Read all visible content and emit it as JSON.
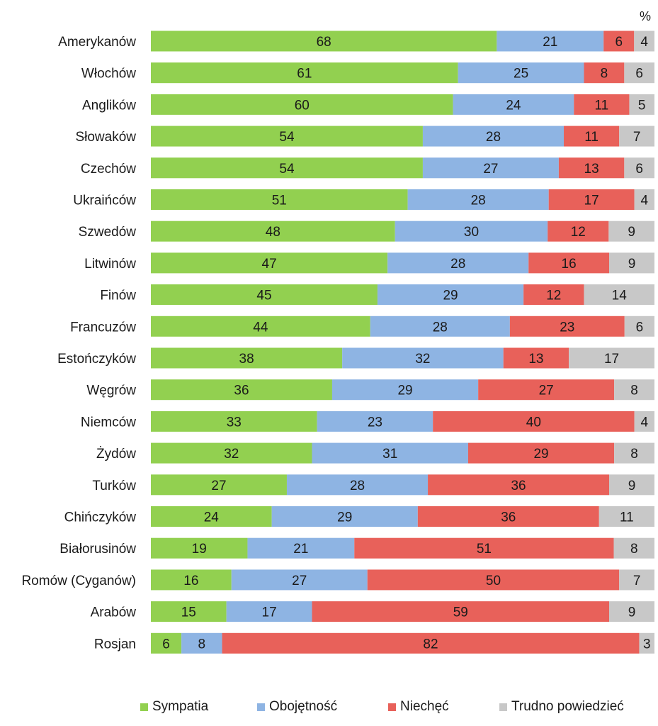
{
  "chart_data": {
    "type": "bar",
    "orientation": "horizontal",
    "stacked": true,
    "unit_label": "%",
    "categories": [
      "Amerykanów",
      "Włochów",
      "Anglików",
      "Słowaków",
      "Czechów",
      "Ukraińców",
      "Szwedów",
      "Litwinów",
      "Finów",
      "Francuzów",
      "Estończyków",
      "Węgrów",
      "Niemców",
      "Żydów",
      "Turków",
      "Chińczyków",
      "Białorusinów",
      "Romów (Cyganów)",
      "Arabów",
      "Rosjan"
    ],
    "series": [
      {
        "name": "Sympatia",
        "color": "#92d050",
        "values": [
          68,
          61,
          60,
          54,
          54,
          51,
          48,
          47,
          45,
          44,
          38,
          36,
          33,
          32,
          27,
          24,
          19,
          16,
          15,
          6
        ]
      },
      {
        "name": "Obojętność",
        "color": "#8eb4e3",
        "values": [
          21,
          25,
          24,
          28,
          27,
          28,
          30,
          28,
          29,
          28,
          32,
          29,
          23,
          31,
          28,
          29,
          21,
          27,
          17,
          8
        ]
      },
      {
        "name": "Niechęć",
        "color": "#e8615a",
        "values": [
          6,
          8,
          11,
          11,
          13,
          17,
          12,
          16,
          12,
          23,
          13,
          27,
          40,
          29,
          36,
          36,
          51,
          50,
          59,
          82
        ]
      },
      {
        "name": "Trudno powiedzieć",
        "color": "#c8c8c8",
        "values": [
          4,
          6,
          5,
          7,
          6,
          4,
          9,
          9,
          14,
          6,
          17,
          8,
          4,
          8,
          9,
          11,
          8,
          7,
          9,
          3
        ]
      }
    ],
    "xlim": [
      0,
      100
    ],
    "grid": false,
    "legend_position": "bottom"
  }
}
